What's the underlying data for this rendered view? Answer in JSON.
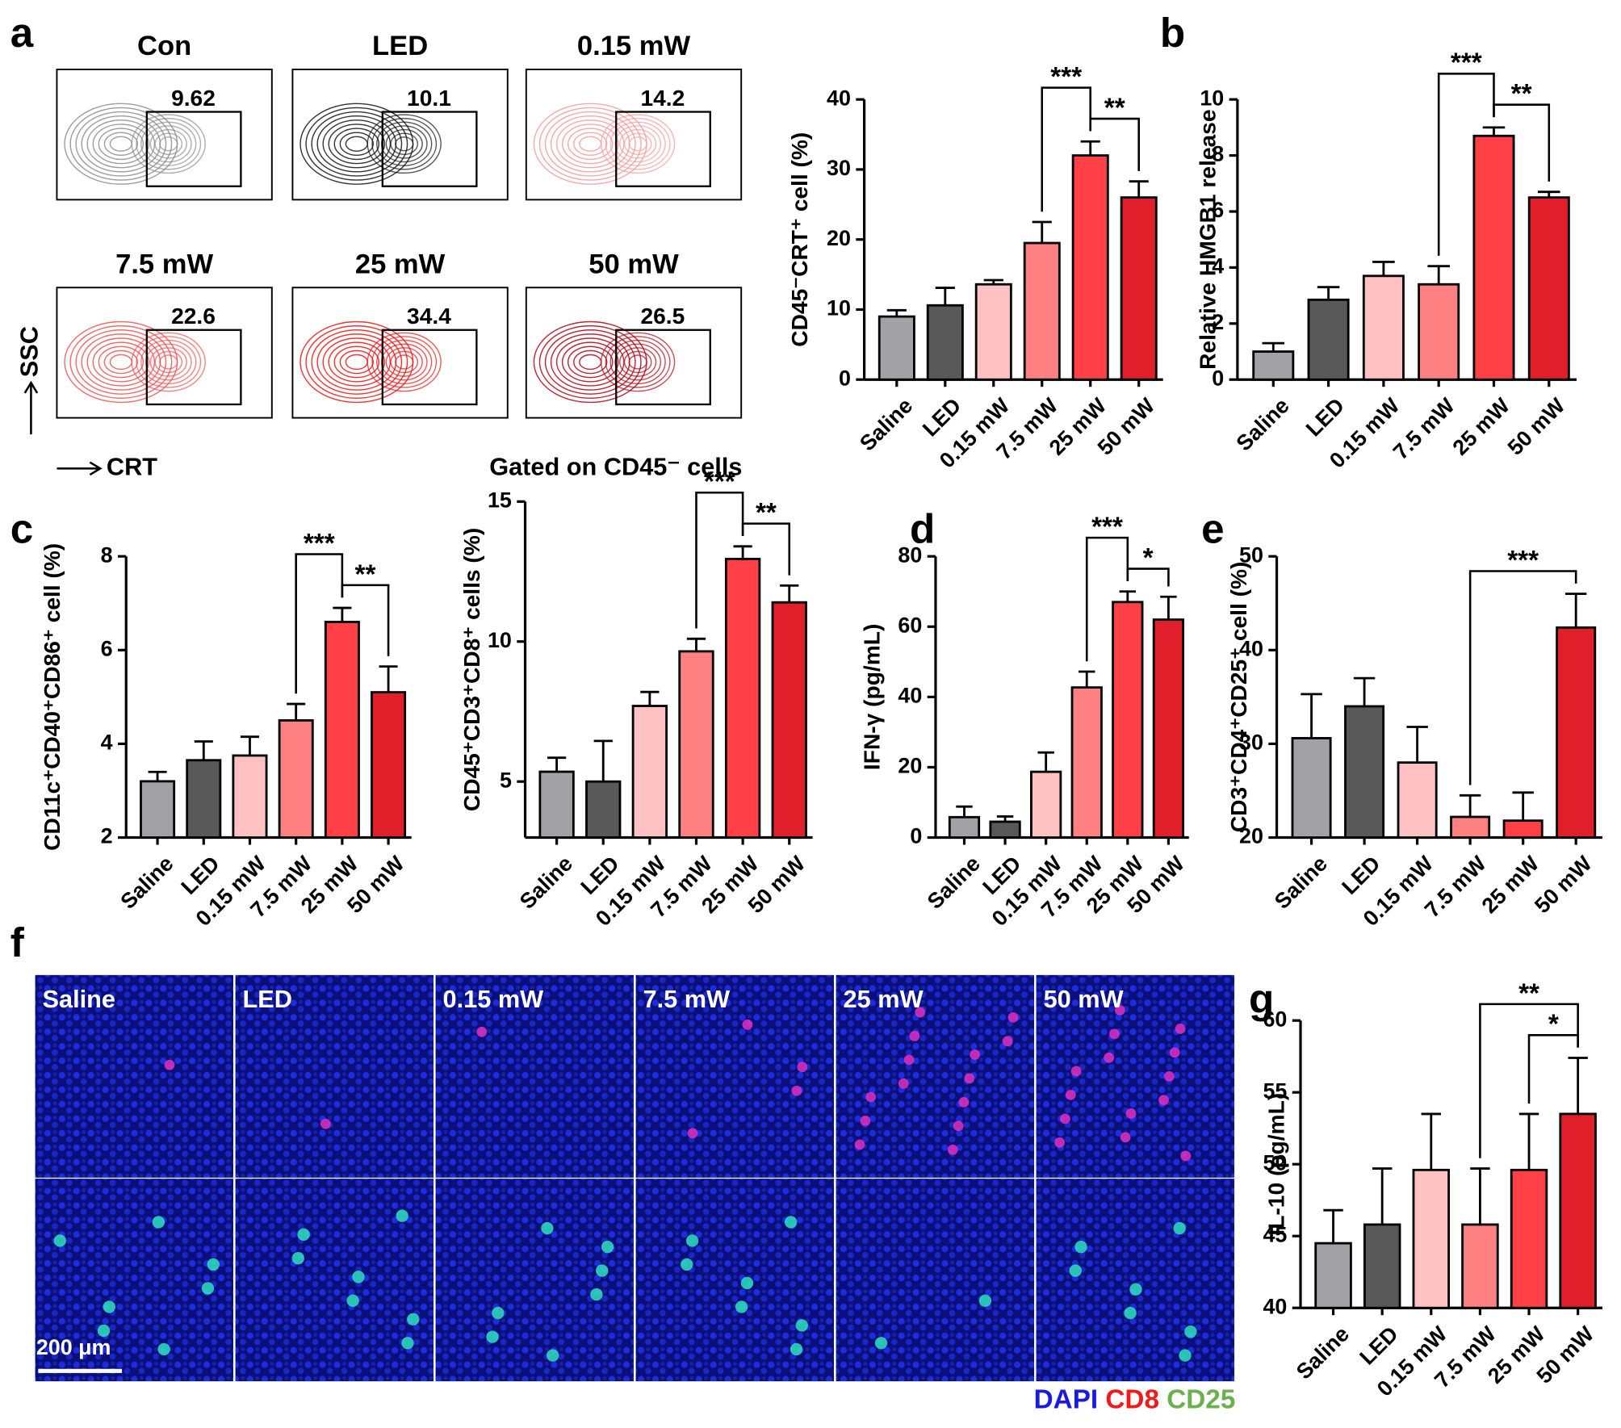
{
  "chart_data": [
    {
      "type": "bar",
      "ylabel": "CD45⁻CRT⁺ cell (%)",
      "categories": [
        "Saline",
        "LED",
        "0.15 mW",
        "7.5 mW",
        "25 mW",
        "50 mW"
      ],
      "values": [
        9,
        10.6,
        13.6,
        19.5,
        32,
        26
      ],
      "errors": [
        0.9,
        2.5,
        0.6,
        3,
        2,
        2.3
      ],
      "colors": [
        "#a2a1a6",
        "#595959",
        "#ffc1c1",
        "#ff8080",
        "#ff4047",
        "#e01f2b"
      ],
      "ylim": [
        0,
        40
      ],
      "yticks": [
        0,
        10,
        20,
        30,
        40
      ],
      "annotations": [
        {
          "label": "***",
          "between": [
            "7.5 mW",
            "25 mW"
          ]
        },
        {
          "label": "**",
          "between": [
            "25 mW",
            "50 mW"
          ]
        }
      ]
    },
    {
      "type": "bar",
      "ylabel": "Relative HMGB1 release",
      "categories": [
        "Saline",
        "LED",
        "0.15 mW",
        "7.5 mW",
        "25 mW",
        "50 mW"
      ],
      "values": [
        1.0,
        2.85,
        3.7,
        3.4,
        8.7,
        6.5
      ],
      "errors": [
        0.3,
        0.45,
        0.5,
        0.65,
        0.3,
        0.2
      ],
      "colors": [
        "#a2a1a6",
        "#595959",
        "#ffc1c1",
        "#ff8080",
        "#ff4047",
        "#e01f2b"
      ],
      "ylim": [
        0,
        10
      ],
      "yticks": [
        0,
        2,
        4,
        6,
        8,
        10
      ],
      "annotations": [
        {
          "label": "***",
          "between": [
            "7.5 mW",
            "25 mW"
          ]
        },
        {
          "label": "**",
          "between": [
            "25 mW",
            "50 mW"
          ]
        }
      ]
    },
    {
      "type": "bar",
      "ylabel": "CD11c⁺CD40⁺CD86⁺ cell (%)",
      "categories": [
        "Saline",
        "LED",
        "0.15 mW",
        "7.5 mW",
        "25 mW",
        "50 mW"
      ],
      "values": [
        3.2,
        3.65,
        3.75,
        4.5,
        6.6,
        5.1
      ],
      "errors": [
        0.2,
        0.4,
        0.4,
        0.35,
        0.3,
        0.55
      ],
      "colors": [
        "#a2a1a6",
        "#595959",
        "#ffc1c1",
        "#ff8080",
        "#ff4047",
        "#e01f2b"
      ],
      "ylim": [
        2,
        8
      ],
      "yticks": [
        2,
        4,
        6,
        8
      ],
      "annotations": [
        {
          "label": "***",
          "between": [
            "7.5 mW",
            "25 mW"
          ]
        },
        {
          "label": "**",
          "between": [
            "25 mW",
            "50 mW"
          ]
        }
      ]
    },
    {
      "type": "bar",
      "ylabel": "CD45⁺CD3⁺CD8⁺ cells (%)",
      "categories": [
        "Saline",
        "LED",
        "0.15 mW",
        "7.5 mW",
        "25 mW",
        "50 mW"
      ],
      "values": [
        5.35,
        5.0,
        7.7,
        9.65,
        12.95,
        11.4
      ],
      "errors": [
        0.5,
        1.45,
        0.5,
        0.45,
        0.45,
        0.6
      ],
      "colors": [
        "#a2a1a6",
        "#595959",
        "#ffc1c1",
        "#ff8080",
        "#ff4047",
        "#e01f2b"
      ],
      "ylim": [
        3,
        15
      ],
      "yticks": [
        5,
        10,
        15
      ],
      "annotations": [
        {
          "label": "***",
          "between": [
            "7.5 mW",
            "25 mW"
          ]
        },
        {
          "label": "**",
          "between": [
            "25 mW",
            "50 mW"
          ]
        }
      ]
    },
    {
      "type": "bar",
      "ylabel": "IFN-γ (pg/mL)",
      "categories": [
        "Saline",
        "LED",
        "0.15 mW",
        "7.5 mW",
        "25 mW",
        "50 mW"
      ],
      "values": [
        5.8,
        4.5,
        18.7,
        42.7,
        67,
        62
      ],
      "errors": [
        3,
        1.5,
        5.5,
        4.5,
        3,
        6.5
      ],
      "colors": [
        "#a2a1a6",
        "#595959",
        "#ffc1c1",
        "#ff8080",
        "#ff4047",
        "#e01f2b"
      ],
      "ylim": [
        0,
        80
      ],
      "yticks": [
        0,
        20,
        40,
        60,
        80
      ],
      "annotations": [
        {
          "label": "***",
          "between": [
            "7.5 mW",
            "25 mW"
          ]
        },
        {
          "label": "*",
          "between": [
            "25 mW",
            "50 mW"
          ]
        }
      ]
    },
    {
      "type": "bar",
      "ylabel": "CD3⁺CD4⁺CD25⁺ cell (%)",
      "categories": [
        "Saline",
        "LED",
        "0.15 mW",
        "7.5 mW",
        "25 mW",
        "50 mW"
      ],
      "values": [
        30.6,
        34,
        28,
        22.2,
        21.8,
        42.4
      ],
      "errors": [
        4.7,
        3,
        3.8,
        2.3,
        3,
        3.6
      ],
      "colors": [
        "#a2a1a6",
        "#595959",
        "#ffc1c1",
        "#ff8080",
        "#ff4047",
        "#e01f2b"
      ],
      "ylim": [
        20,
        50
      ],
      "yticks": [
        20,
        30,
        40,
        50
      ],
      "annotations": [
        {
          "label": "***",
          "between": [
            "7.5 mW",
            "50 mW"
          ]
        }
      ]
    },
    {
      "type": "bar",
      "ylabel": "IL-10 (pg/mL)",
      "categories": [
        "Saline",
        "LED",
        "0.15 mW",
        "7.5 mW",
        "25 mW",
        "50 mW"
      ],
      "values": [
        44.5,
        45.8,
        49.6,
        45.8,
        49.6,
        53.5
      ],
      "errors": [
        2.3,
        3.9,
        3.9,
        3.9,
        3.9,
        3.9
      ],
      "colors": [
        "#a2a1a6",
        "#595959",
        "#ffc1c1",
        "#ff8080",
        "#ff4047",
        "#e01f2b"
      ],
      "ylim": [
        40,
        60
      ],
      "yticks": [
        40,
        45,
        50,
        55,
        60
      ],
      "annotations": [
        {
          "label": "**",
          "between": [
            "7.5 mW",
            "50 mW"
          ]
        },
        {
          "label": "*",
          "between": [
            "25 mW",
            "50 mW"
          ]
        }
      ]
    }
  ],
  "panel_letters": [
    "a",
    "b",
    "c",
    "d",
    "e",
    "f",
    "g"
  ],
  "flow": {
    "y_axis": "SSC",
    "x_axis": "CRT",
    "note": "Gated on CD45⁻ cells",
    "panels": [
      {
        "title": "Con",
        "gate": 9.62,
        "color": "#8c8c8c"
      },
      {
        "title": "LED",
        "gate": 10.1,
        "color": "#111111"
      },
      {
        "title": "0.15 mW",
        "gate": 14.2,
        "color": "#f59a9a"
      },
      {
        "title": "7.5 mW",
        "gate": 22.6,
        "color": "#f05050"
      },
      {
        "title": "25 mW",
        "gate": 34.4,
        "color": "#f01010"
      },
      {
        "title": "50 mW",
        "gate": 26.5,
        "color": "#b00010"
      }
    ]
  },
  "micrographs": {
    "labels": [
      "Saline",
      "LED",
      "0.15 mW",
      "7.5 mW",
      "25 mW",
      "50 mW"
    ],
    "scale_bar": "200 μm",
    "legend": [
      {
        "name": "DAPI",
        "color": "#1a1ae6"
      },
      {
        "name": "CD8",
        "color": "#f01a1a"
      },
      {
        "name": "CD25",
        "color": "#6ab04c"
      }
    ]
  }
}
